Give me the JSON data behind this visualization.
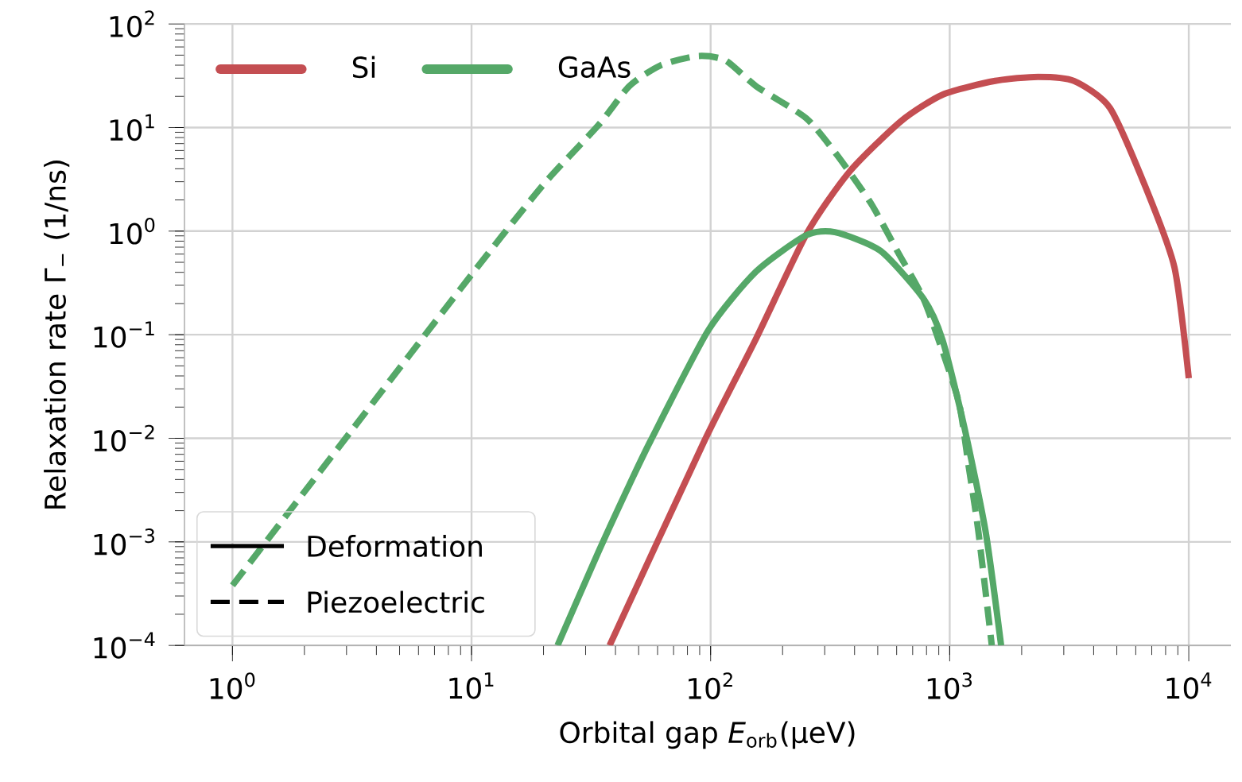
{
  "chart_data": {
    "type": "line",
    "xlabel": "Orbital gap *E*$_{orb}$(μeV)",
    "ylabel": "Relaxation rate Γ$_{−}$ (1/ns)",
    "log": "xy",
    "grid": true,
    "legend": "top left",
    "xlim": [
      0.63,
      15000
    ],
    "ylim": [
      0.0001,
      100
    ],
    "xticks": [
      {
        "value": 1,
        "label": "10$^{0}$"
      },
      {
        "value": 10,
        "label": "10$^{1}$"
      },
      {
        "value": 100,
        "label": "10$^{2}$"
      },
      {
        "value": 1000,
        "label": "10$^{3}$"
      },
      {
        "value": 10000,
        "label": "10$^{4}$"
      }
    ],
    "yticks": [
      {
        "value": 0.0001,
        "label": "10$^{−4}$"
      },
      {
        "value": 0.001,
        "label": "10$^{−3}$"
      },
      {
        "value": 0.01,
        "label": "10$^{−2}$"
      },
      {
        "value": 0.1,
        "label": "10$^{−1}$"
      },
      {
        "value": 1,
        "label": "10$^{0}$"
      },
      {
        "value": 10,
        "label": "10$^{1}$"
      },
      {
        "value": 100,
        "label": "10$^{2}$"
      }
    ],
    "annotations": [
      "Deformation",
      "Piezoelectric"
    ],
    "series": [
      {
        "name": "Si",
        "color": "#c44e52",
        "line_style": "solid",
        "x": [
          37.8,
          93.5,
          154,
          253,
          380,
          625,
          940,
          1549,
          2344,
          3311,
          4677,
          6607,
          8710,
          10000
        ],
        "values": [
          0.0001,
          0.00912,
          0.0891,
          0.955,
          3.72,
          11.5,
          20.9,
          28.2,
          30.9,
          28.2,
          15.5,
          2.63,
          0.447,
          0.038
        ]
      },
      {
        "name": "GaAs",
        "color": "#55a868",
        "line_style": "solid",
        "x": [
          22.9,
          33.9,
          45.7,
          56.2,
          97.7,
          155,
          251,
          331,
          513,
          776,
          933,
          1148,
          1413,
          1641
        ],
        "values": [
          0.0001,
          0.000794,
          0.00355,
          0.00955,
          0.11,
          0.407,
          0.912,
          0.977,
          0.646,
          0.224,
          0.0891,
          0.0132,
          0.00126,
          0.0001
        ]
      },
      {
        "color": "#55a868",
        "line_style": "dashed",
        "x": [
          1,
          3.16,
          10,
          20,
          33.9,
          45.7,
          61.7,
          88.1,
          115,
          155,
          251,
          339,
          468,
          603,
          776,
          933,
          1096,
          1202,
          1318,
          1500
        ],
        "values": [
          0.00038,
          0.012,
          0.38,
          2.82,
          10.5,
          25.1,
          39.8,
          49,
          44.7,
          25.1,
          12.3,
          5.37,
          1.86,
          0.646,
          0.224,
          0.0692,
          0.0214,
          0.00525,
          0.00126,
          0.0001
        ]
      }
    ]
  }
}
